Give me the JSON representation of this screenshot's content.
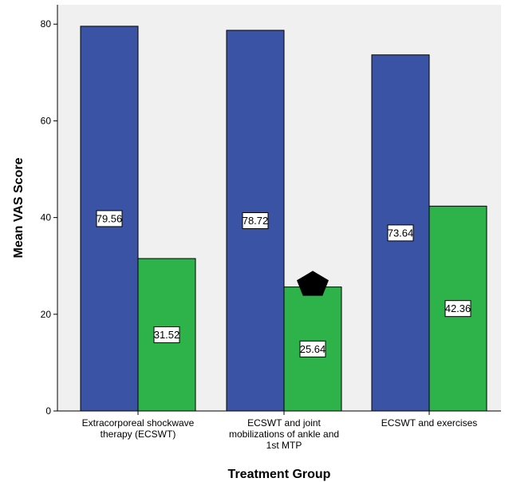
{
  "chart_data": {
    "type": "bar",
    "xlabel": "Treatment Group",
    "ylabel": "Mean VAS Score",
    "ylim": [
      0,
      84
    ],
    "yticks": [
      0,
      20,
      40,
      60,
      80
    ],
    "grid": false,
    "categories": [
      [
        "Extracorporeal shockwave",
        "therapy (ECSWT)"
      ],
      [
        "ECSWT and joint",
        "mobilizations of ankle and",
        "1st MTP"
      ],
      [
        "ECSWT and exercises"
      ]
    ],
    "series": [
      {
        "values": [
          79.56,
          78.72,
          73.64
        ],
        "labels": [
          "79.56",
          "78.72",
          "73.64"
        ],
        "color": "#3b53a4"
      },
      {
        "values": [
          31.52,
          25.64,
          42.36
        ],
        "labels": [
          "31.52",
          "25.64",
          "42.36"
        ],
        "color": "#2db34a"
      }
    ],
    "marker": {
      "shape": "pentagon-icon",
      "series": 1,
      "category": 1,
      "color": "#000000"
    },
    "colors": {
      "plot_background": "#f0f0f0",
      "axis": "#000000"
    }
  }
}
